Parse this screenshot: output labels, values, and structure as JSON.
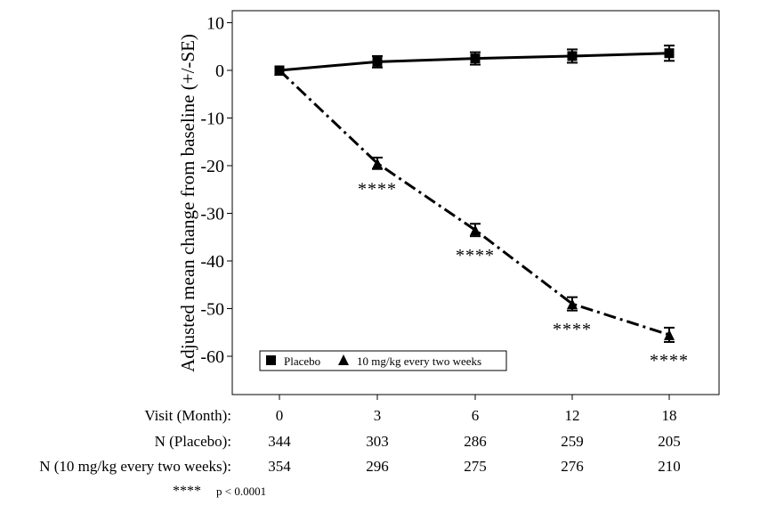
{
  "chart_data": {
    "type": "line",
    "ylabel": "Adjusted mean change from baseline (+/-SE)",
    "ylim": [
      -68,
      12
    ],
    "yticks": [
      10,
      0,
      -10,
      -20,
      -30,
      -40,
      -50,
      -60
    ],
    "x_categories": [
      "0",
      "3",
      "6",
      "12",
      "18"
    ],
    "series": [
      {
        "name": "Placebo",
        "marker": "square",
        "line_style": "solid",
        "values": [
          0,
          1.8,
          2.5,
          3.0,
          3.6
        ],
        "se": [
          0,
          1.2,
          1.3,
          1.4,
          1.6
        ]
      },
      {
        "name": "10 mg/kg every two weeks",
        "marker": "triangle",
        "line_style": "dash-dot",
        "values": [
          0,
          -19.5,
          -33.5,
          -49,
          -55.5
        ],
        "se": [
          0,
          1.2,
          1.3,
          1.4,
          1.5
        ],
        "significance": [
          "",
          "****",
          "****",
          "****",
          "****"
        ]
      }
    ],
    "legend": {
      "placement": "bottom-left",
      "items": [
        "Placebo",
        "10 mg/kg every two weeks"
      ]
    },
    "table": {
      "rows": [
        {
          "label": "Visit (Month):",
          "values": [
            "0",
            "3",
            "6",
            "12",
            "18"
          ]
        },
        {
          "label": "N (Placebo):",
          "values": [
            "344",
            "303",
            "286",
            "259",
            "205"
          ]
        },
        {
          "label": "N (10 mg/kg every two weeks):",
          "values": [
            "354",
            "296",
            "275",
            "276",
            "210"
          ]
        }
      ]
    },
    "footnote": {
      "marker": "****",
      "text": "p < 0.0001"
    }
  }
}
